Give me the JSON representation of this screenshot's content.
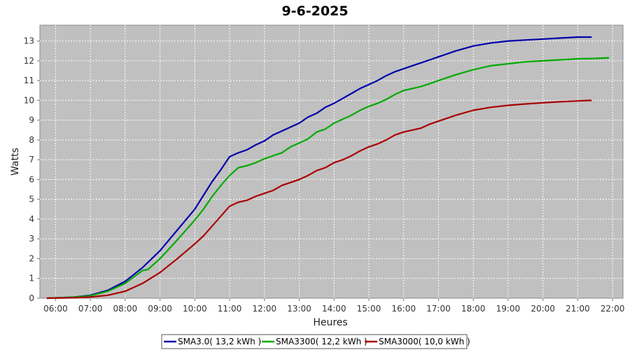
{
  "chart_data": {
    "type": "line",
    "title": "9-6-2025",
    "xlabel": "Heures",
    "ylabel": "Watts",
    "xlim": [
      5.55,
      22.3
    ],
    "ylim": [
      0,
      13.8
    ],
    "x_ticks": [
      "06:00",
      "07:00",
      "08:00",
      "09:00",
      "10:00",
      "11:00",
      "12:00",
      "13:00",
      "14:00",
      "15:00",
      "16:00",
      "17:00",
      "18:00",
      "19:00",
      "20:00",
      "21:00",
      "22:00"
    ],
    "y_ticks": [
      "0",
      "1",
      "2",
      "3",
      "4",
      "5",
      "6",
      "7",
      "8",
      "9",
      "10",
      "11",
      "12",
      "13"
    ],
    "grid": true,
    "legend_position": "bottom",
    "series": [
      {
        "name": "SMA3.0( 13,2 kWh )",
        "color": "#0000aa",
        "x": [
          5.75,
          6.5,
          7.0,
          7.5,
          8.0,
          8.5,
          9.0,
          9.5,
          10.0,
          10.25,
          10.5,
          10.75,
          11.0,
          11.25,
          11.5,
          11.75,
          12.0,
          12.25,
          12.5,
          12.75,
          13.0,
          13.25,
          13.5,
          13.75,
          14.0,
          14.25,
          14.5,
          14.75,
          15.0,
          15.25,
          15.5,
          15.75,
          16.0,
          16.25,
          16.5,
          16.75,
          17.0,
          17.5,
          18.0,
          18.5,
          19.0,
          19.5,
          20.0,
          20.5,
          21.0,
          21.4
        ],
        "y": [
          0.0,
          0.05,
          0.15,
          0.4,
          0.85,
          1.55,
          2.4,
          3.45,
          4.5,
          5.2,
          5.9,
          6.5,
          7.15,
          7.35,
          7.5,
          7.75,
          7.95,
          8.25,
          8.45,
          8.65,
          8.85,
          9.15,
          9.35,
          9.65,
          9.85,
          10.1,
          10.35,
          10.6,
          10.8,
          11.0,
          11.25,
          11.45,
          11.6,
          11.75,
          11.9,
          12.05,
          12.2,
          12.5,
          12.75,
          12.9,
          13.0,
          13.05,
          13.1,
          13.15,
          13.2,
          13.2
        ]
      },
      {
        "name": "SMA3300( 12,2 kWh )",
        "color": "#00aa00",
        "x": [
          5.75,
          6.5,
          7.0,
          7.5,
          8.0,
          8.5,
          8.65,
          9.0,
          9.5,
          10.0,
          10.25,
          10.5,
          10.75,
          11.0,
          11.25,
          11.5,
          11.75,
          12.0,
          12.25,
          12.5,
          12.75,
          13.0,
          13.25,
          13.5,
          13.75,
          14.0,
          14.25,
          14.5,
          14.75,
          15.0,
          15.25,
          15.5,
          15.75,
          16.0,
          16.25,
          16.5,
          16.75,
          17.0,
          17.5,
          18.0,
          18.5,
          19.0,
          19.5,
          20.0,
          20.5,
          21.0,
          21.5,
          21.9
        ],
        "y": [
          0.0,
          0.05,
          0.12,
          0.35,
          0.75,
          1.4,
          1.45,
          2.0,
          2.95,
          3.95,
          4.5,
          5.15,
          5.7,
          6.2,
          6.6,
          6.7,
          6.85,
          7.05,
          7.2,
          7.35,
          7.65,
          7.85,
          8.05,
          8.4,
          8.55,
          8.85,
          9.05,
          9.25,
          9.5,
          9.7,
          9.85,
          10.05,
          10.3,
          10.5,
          10.6,
          10.7,
          10.85,
          11.0,
          11.3,
          11.55,
          11.75,
          11.85,
          11.95,
          12.0,
          12.05,
          12.1,
          12.12,
          12.15
        ]
      },
      {
        "name": "SMA3000( 10,0 kWh )",
        "color": "#aa0000",
        "x": [
          5.75,
          6.5,
          7.0,
          7.5,
          8.0,
          8.5,
          9.0,
          9.5,
          10.0,
          10.25,
          10.5,
          10.75,
          11.0,
          11.25,
          11.5,
          11.75,
          12.0,
          12.25,
          12.5,
          12.75,
          13.0,
          13.25,
          13.5,
          13.75,
          14.0,
          14.25,
          14.5,
          14.75,
          15.0,
          15.25,
          15.5,
          15.75,
          16.0,
          16.25,
          16.5,
          16.75,
          17.0,
          17.5,
          18.0,
          18.5,
          19.0,
          19.5,
          20.0,
          20.5,
          21.0,
          21.4
        ],
        "y": [
          0.0,
          0.02,
          0.06,
          0.15,
          0.35,
          0.75,
          1.3,
          2.0,
          2.75,
          3.15,
          3.65,
          4.15,
          4.65,
          4.85,
          4.95,
          5.15,
          5.3,
          5.45,
          5.7,
          5.85,
          6.0,
          6.2,
          6.45,
          6.6,
          6.85,
          7.0,
          7.2,
          7.45,
          7.65,
          7.8,
          8.0,
          8.25,
          8.4,
          8.5,
          8.6,
          8.8,
          8.95,
          9.25,
          9.5,
          9.65,
          9.75,
          9.82,
          9.88,
          9.93,
          9.97,
          10.0
        ]
      }
    ]
  }
}
